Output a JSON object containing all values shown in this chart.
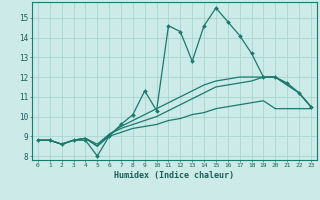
{
  "xlabel": "Humidex (Indice chaleur)",
  "bg_color": "#cceae7",
  "grid_color": "#aad4d0",
  "line_color": "#1a7a6e",
  "xlim": [
    -0.5,
    23.5
  ],
  "ylim": [
    7.8,
    15.8
  ],
  "yticks": [
    8,
    9,
    10,
    11,
    12,
    13,
    14,
    15
  ],
  "xticks": [
    0,
    1,
    2,
    3,
    4,
    5,
    6,
    7,
    8,
    9,
    10,
    11,
    12,
    13,
    14,
    15,
    16,
    17,
    18,
    19,
    20,
    21,
    22,
    23
  ],
  "lines": [
    {
      "x": [
        0,
        1,
        2,
        3,
        4,
        5,
        6,
        7,
        8,
        9,
        10,
        11,
        12,
        13,
        14,
        15,
        16,
        17,
        18,
        19,
        20,
        21,
        22,
        23
      ],
      "y": [
        8.8,
        8.8,
        8.6,
        8.8,
        8.8,
        8.0,
        9.0,
        9.6,
        10.1,
        11.3,
        10.3,
        14.6,
        14.3,
        12.8,
        14.6,
        15.5,
        14.8,
        14.1,
        13.2,
        12.0,
        12.0,
        11.7,
        11.2,
        10.5
      ],
      "marker": true
    },
    {
      "x": [
        0,
        1,
        2,
        3,
        4,
        5,
        6,
        7,
        8,
        9,
        10,
        11,
        12,
        13,
        14,
        15,
        16,
        17,
        18,
        19,
        20,
        21,
        22,
        23
      ],
      "y": [
        8.8,
        8.8,
        8.6,
        8.8,
        8.9,
        8.5,
        9.1,
        9.4,
        9.6,
        9.8,
        10.0,
        10.3,
        10.6,
        10.9,
        11.2,
        11.5,
        11.6,
        11.7,
        11.8,
        12.0,
        12.0,
        11.6,
        11.2,
        10.5
      ],
      "marker": false
    },
    {
      "x": [
        0,
        1,
        2,
        3,
        4,
        5,
        6,
        7,
        8,
        9,
        10,
        11,
        12,
        13,
        14,
        15,
        16,
        17,
        18,
        19,
        20,
        21,
        22,
        23
      ],
      "y": [
        8.8,
        8.8,
        8.6,
        8.8,
        8.9,
        8.6,
        9.1,
        9.5,
        9.8,
        10.1,
        10.4,
        10.7,
        11.0,
        11.3,
        11.6,
        11.8,
        11.9,
        12.0,
        12.0,
        12.0,
        12.0,
        11.6,
        11.2,
        10.5
      ],
      "marker": false
    },
    {
      "x": [
        0,
        1,
        2,
        3,
        4,
        5,
        6,
        7,
        8,
        9,
        10,
        11,
        12,
        13,
        14,
        15,
        16,
        17,
        18,
        19,
        20,
        21,
        22,
        23
      ],
      "y": [
        8.8,
        8.8,
        8.6,
        8.8,
        8.9,
        8.5,
        9.0,
        9.2,
        9.4,
        9.5,
        9.6,
        9.8,
        9.9,
        10.1,
        10.2,
        10.4,
        10.5,
        10.6,
        10.7,
        10.8,
        10.4,
        10.4,
        10.4,
        10.4
      ],
      "marker": false
    }
  ]
}
